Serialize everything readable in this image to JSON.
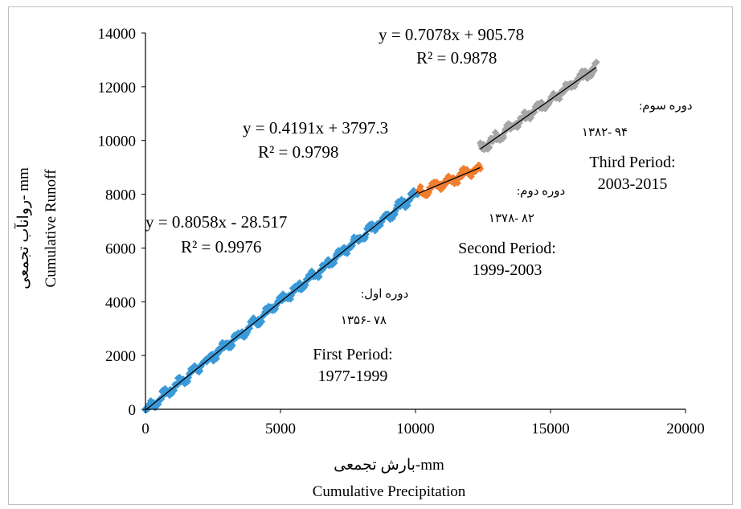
{
  "chart_data": {
    "type": "scatter",
    "xlabel_fa": "بارش تجمعی-mm",
    "xlabel_en": "Cumulative  Precipitation",
    "ylabel_fa": "روانآب تجمعی- mm",
    "ylabel_en": "Cumulative  Runoff",
    "xlim": [
      0,
      20000
    ],
    "ylim": [
      0,
      14000
    ],
    "xticks": [
      "0",
      "5000",
      "10000",
      "15000",
      "20000"
    ],
    "yticks": [
      "0",
      "2000",
      "4000",
      "6000",
      "8000",
      "10000",
      "12000",
      "14000"
    ],
    "grid": false,
    "series": [
      {
        "color": "#3a9ad9",
        "x_range": [
          0,
          10100
        ],
        "trendline": {
          "slope": 0.8058,
          "intercept": -28.517,
          "equation": "y = 0.8058x - 28.517",
          "r2": "R² = 0.9976"
        },
        "period_fa": "دوره اول:",
        "years_fa": "۱۳۵۶- ۷۸",
        "period_en": "First Period:",
        "years_en": "1977-1999"
      },
      {
        "color": "#f07e2e",
        "x_range": [
          10100,
          12400
        ],
        "trendline": {
          "slope": 0.4191,
          "intercept": 3797.3,
          "equation": "y = 0.4191x + 3797.3",
          "r2": "R² = 0.9798"
        },
        "period_fa": "دوره دوم:",
        "years_fa": "۱۳۷۸- ۸۲",
        "period_en": "Second Period:",
        "years_en": "1999-2003"
      },
      {
        "color": "#a6a6a6",
        "x_range": [
          12400,
          16700
        ],
        "trendline": {
          "slope": 0.7078,
          "intercept": 905.78,
          "equation": "y = 0.7078x + 905.78",
          "r2": "R² = 0.9878"
        },
        "period_fa": "دوره سوم:",
        "years_fa": "۱۳۸۲- ۹۴",
        "period_en": "Third Period:",
        "years_en": "2003-2015"
      }
    ]
  }
}
